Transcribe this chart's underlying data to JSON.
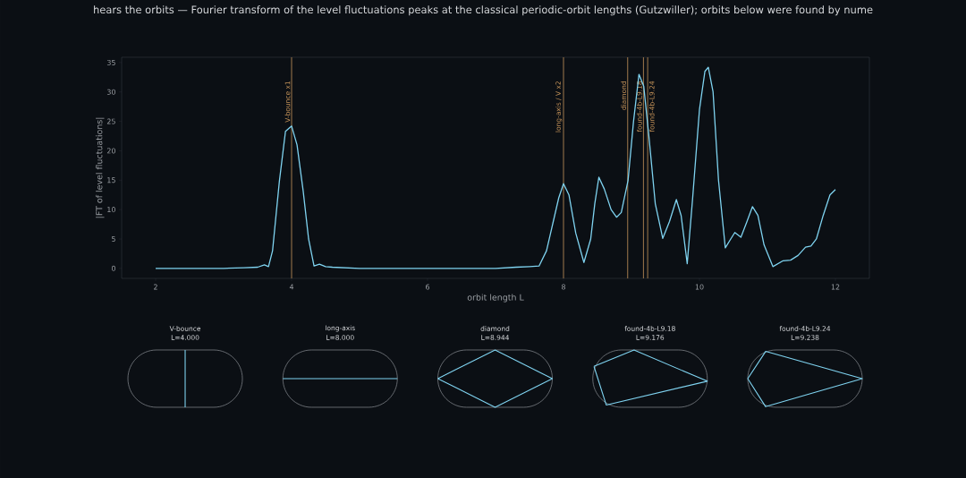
{
  "chart_data": {
    "type": "line",
    "title": "hears the orbits — Fourier transform of the level fluctuations peaks at the classical periodic-orbit lengths (Gutzwiller); orbits below were found by nume",
    "xlabel": "orbit length L",
    "ylabel": "|FT of level fluctuations|",
    "x": [
      2,
      2.5,
      3,
      3.3,
      3.5,
      3.6,
      3.66,
      3.72,
      3.82,
      3.91,
      4.0,
      4.08,
      4.17,
      4.25,
      4.33,
      4.41,
      4.5,
      4.6,
      5,
      6,
      7,
      7.3,
      7.5,
      7.64,
      7.75,
      7.85,
      7.93,
      8.0,
      8.08,
      8.18,
      8.3,
      8.4,
      8.46,
      8.52,
      8.6,
      8.7,
      8.78,
      8.85,
      8.95,
      9.03,
      9.11,
      9.18,
      9.26,
      9.35,
      9.46,
      9.56,
      9.66,
      9.73,
      9.82,
      9.9,
      10.0,
      10.08,
      10.13,
      10.2,
      10.28,
      10.38,
      10.46,
      10.52,
      10.61,
      10.7,
      10.78,
      10.86,
      10.95,
      11.08,
      11.23,
      11.34,
      11.45,
      11.56,
      11.64,
      11.72,
      11.82,
      11.92,
      12.0
    ],
    "values": [
      0,
      0,
      0,
      0.1,
      0.2,
      0.6,
      0.3,
      3,
      14.8,
      23.3,
      24.2,
      21,
      13.2,
      5,
      0.4,
      0.7,
      0.3,
      0.2,
      0,
      0,
      0,
      0.2,
      0.3,
      0.4,
      3,
      8,
      12,
      14.4,
      12.5,
      6,
      1.0,
      5,
      11,
      15.5,
      13.5,
      10,
      8.7,
      9.5,
      15,
      25,
      33,
      31,
      22,
      11,
      5.1,
      8,
      11.7,
      9,
      0.8,
      12,
      27,
      33.5,
      34.2,
      30,
      15,
      3.5,
      5,
      6.1,
      5.3,
      8,
      10.5,
      9,
      4,
      0.3,
      1.3,
      1.4,
      2.2,
      3.6,
      3.8,
      5,
      9,
      12.5,
      13.4
    ],
    "color": "#7fd3f0",
    "xlim": [
      1.5,
      12.5
    ],
    "ylim": [
      -1.7,
      35.9
    ],
    "xticks": [
      2,
      4,
      6,
      8,
      10,
      12
    ],
    "yticks": [
      0,
      5,
      10,
      15,
      20,
      25,
      30,
      35
    ],
    "ref_lines": [
      {
        "axis": "x",
        "value": 4.0,
        "label": "V-bounce x1",
        "color": "#c8955a"
      },
      {
        "axis": "x",
        "value": 8.0,
        "label": "long-axis / V x2",
        "color": "#c8955a"
      },
      {
        "axis": "x",
        "value": 8.944,
        "label": "diamond",
        "color": "#c8955a"
      },
      {
        "axis": "x",
        "value": 9.176,
        "label": "found-4b-L9.18",
        "color": "#c8955a"
      },
      {
        "axis": "x",
        "value": 9.238,
        "label": "found-4b-L9.24",
        "color": "#c8955a"
      }
    ],
    "annotations": [
      "V-bounce",
      "L=4.000",
      "long-axis",
      "L=8.000",
      "diamond",
      "L=8.944",
      "found-4b-L9.18",
      "L=9.176",
      "found-4b-L9.24",
      "L=9.238"
    ]
  }
}
